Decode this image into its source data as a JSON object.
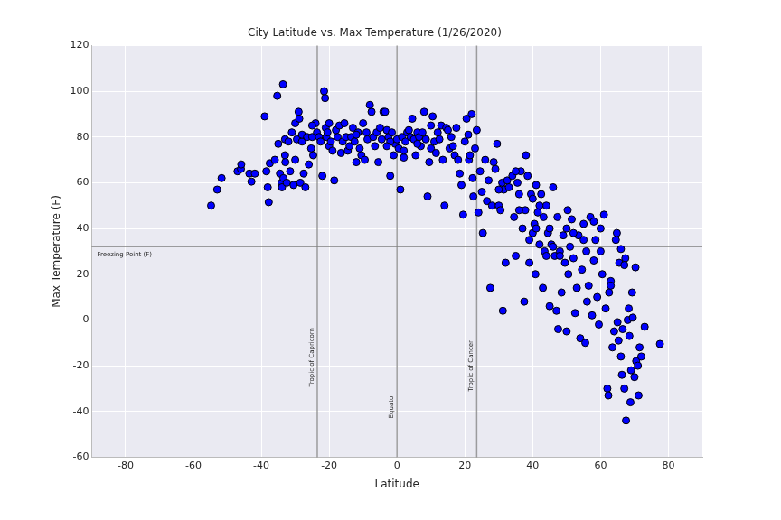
{
  "chart_data": {
    "type": "scatter",
    "title": "City Latitude vs. Max Temperature (1/26/2020)",
    "x_label": "Latitude",
    "y_label": "Max Temperature (F)",
    "x": [
      -54.8,
      -53,
      -51.7,
      -47,
      -46,
      -45.9,
      -43.5,
      -42.9,
      -41.9,
      -39,
      -38.5,
      -38.1,
      -37.8,
      -37.5,
      -36,
      -35.3,
      -35,
      -34.5,
      -34,
      -33.9,
      -33.6,
      -33.5,
      -33,
      -33,
      -32.9,
      -32.5,
      -32,
      -31.5,
      -31,
      -30.5,
      -30,
      -30,
      -29.5,
      -29,
      -28.8,
      -28.5,
      -28,
      -28,
      -27.5,
      -27,
      -26.5,
      -26,
      -25.3,
      -25,
      -24.7,
      -24,
      -23.6,
      -23,
      -22.5,
      -22,
      -21.5,
      -21.2,
      -21,
      -20.8,
      -20.5,
      -20,
      -19.5,
      -19,
      -18.5,
      -18,
      -17.5,
      -17,
      -16.5,
      -16,
      -15.5,
      -15,
      -14.5,
      -14,
      -13.5,
      -13,
      -12.5,
      -12,
      -11.5,
      -11,
      -10.5,
      -10,
      -9.5,
      -9,
      -8.7,
      -8,
      -7.5,
      -7,
      -6.5,
      -6,
      -5.5,
      -5,
      -4.5,
      -4,
      -3.5,
      -3,
      -2.5,
      -2,
      -1.5,
      -1,
      -0.5,
      0,
      0.5,
      1,
      1.5,
      2,
      2.5,
      3,
      3.5,
      4,
      4.5,
      5,
      5.5,
      6,
      6.5,
      7,
      7.5,
      8,
      8.5,
      9,
      9.5,
      10,
      10.5,
      11,
      11.5,
      12,
      12.5,
      13,
      13.5,
      14,
      14.5,
      15,
      15.5,
      16,
      16.5,
      17,
      17.5,
      18,
      18.5,
      19,
      19.5,
      20,
      20.5,
      21,
      21.2,
      21.5,
      22,
      22.3,
      22.5,
      23,
      23.5,
      24,
      24.5,
      25,
      25.3,
      26,
      26.5,
      27,
      27.5,
      28,
      28.5,
      29,
      29.5,
      30,
      30.5,
      31,
      31.2,
      31.5,
      32,
      32.5,
      33,
      34,
      34.5,
      35,
      35.5,
      36,
      36.5,
      37,
      37.5,
      37.8,
      38,
      38.5,
      39,
      39.5,
      40,
      40.5,
      40.8,
      41,
      41.5,
      42,
      42.5,
      43,
      43.2,
      43.5,
      44,
      44.5,
      45,
      45.5,
      46,
      46.5,
      47,
      47.3,
      47.5,
      48,
      48.5,
      49,
      49.5,
      50,
      50.3,
      50.5,
      51,
      51.5,
      52,
      52.5,
      53,
      53.5,
      54,
      54.5,
      55,
      55.5,
      55.8,
      56,
      56.5,
      57,
      57.5,
      58,
      58.5,
      59,
      59.5,
      60,
      60.5,
      61,
      61.5,
      62,
      62.3,
      62.5,
      63,
      63.5,
      64,
      64.5,
      64.8,
      65,
      65.3,
      65.5,
      66,
      66.3,
      66.5,
      67,
      67.3,
      67.5,
      68,
      68.3,
      68.5,
      68.8,
      69,
      69.3,
      69.5,
      70,
      70.3,
      70.5,
      71,
      71.2,
      71.5,
      72,
      73,
      77.5,
      40,
      42,
      45,
      50,
      46,
      48,
      52,
      44,
      55,
      58,
      60,
      63,
      66,
      67,
      -2,
      -3,
      2,
      6,
      10,
      -12,
      -25,
      -20,
      30,
      35,
      36,
      39,
      41
    ],
    "values": [
      50,
      57,
      62,
      65,
      66,
      68,
      64,
      60.5,
      64,
      89,
      65,
      58,
      51.5,
      68.5,
      70,
      98,
      77,
      64,
      60,
      58,
      103,
      62,
      79,
      72,
      69,
      60,
      78,
      65,
      82,
      59,
      86,
      70,
      79,
      91,
      88,
      60,
      78,
      81,
      64,
      58,
      80,
      68,
      75,
      80,
      72,
      86,
      82,
      80,
      78,
      63,
      100,
      97,
      84,
      80,
      82,
      76,
      78,
      74,
      61,
      83,
      80,
      85,
      73,
      78,
      86,
      80,
      74,
      76,
      80,
      84,
      78,
      69,
      82,
      75,
      72,
      86,
      70,
      82,
      79,
      94,
      91,
      80,
      76,
      82,
      69,
      84,
      79,
      91,
      91,
      83,
      80,
      63,
      82,
      72,
      77,
      79,
      75,
      57,
      80,
      71,
      78,
      82,
      83,
      80,
      88,
      79,
      72,
      82,
      80,
      76,
      82,
      91,
      79,
      54,
      69,
      75,
      89,
      78,
      73,
      82,
      79,
      85,
      70,
      50,
      84,
      83,
      75,
      80,
      76,
      72,
      84,
      70,
      64,
      59,
      46,
      78,
      88,
      81,
      70,
      72,
      90,
      62,
      54,
      75,
      83,
      47,
      65,
      56,
      38,
      70,
      52,
      61,
      14,
      50,
      69,
      66,
      77,
      50,
      48,
      60,
      4,
      57,
      25,
      61,
      58,
      63,
      45,
      28,
      60,
      55,
      65,
      40,
      8,
      48,
      72,
      63,
      25,
      55,
      38,
      42,
      20,
      59,
      47,
      33,
      55,
      14,
      45,
      30,
      50,
      38,
      6,
      33,
      58,
      28,
      4,
      45,
      -4,
      30,
      12,
      37,
      25,
      -5,
      48,
      20,
      32,
      44,
      27,
      3,
      14,
      37,
      -8,
      22,
      42,
      -10,
      30,
      8,
      15,
      45,
      2,
      26,
      35,
      10,
      -2,
      30,
      20,
      46,
      5,
      -30,
      -33,
      12,
      17,
      -12,
      -5,
      35,
      38,
      -1,
      -9,
      25,
      -16,
      -24,
      -4,
      -30,
      27,
      -44,
      0,
      5,
      -7,
      -36,
      -22,
      12,
      1,
      -25,
      23,
      -18,
      -20,
      -33,
      -12,
      -16,
      -3,
      -10.5,
      53,
      50,
      40,
      40,
      32,
      28,
      38,
      28,
      35,
      43,
      40,
      15,
      31,
      24,
      78,
      76,
      74,
      77,
      85,
      81,
      85,
      86,
      57,
      65,
      48,
      35,
      40
    ],
    "color": "blue",
    "marker": "circle",
    "xlim": [
      -90,
      90
    ],
    "xticks": [
      -80,
      -60,
      -40,
      -20,
      0,
      20,
      40,
      60,
      80
    ],
    "ylim": [
      -60,
      120
    ],
    "yticks": [
      -60,
      -40,
      -20,
      0,
      20,
      40,
      60,
      80,
      100,
      120
    ],
    "grid": true,
    "annotations": [
      {
        "label": "Freezing Point (F)",
        "y": 32
      },
      {
        "label": "Tropic of Capricorn",
        "x": -23.5
      },
      {
        "label": "Equator",
        "x": 0
      },
      {
        "label": "Tropic of Cancer",
        "x": 23.5
      }
    ]
  }
}
